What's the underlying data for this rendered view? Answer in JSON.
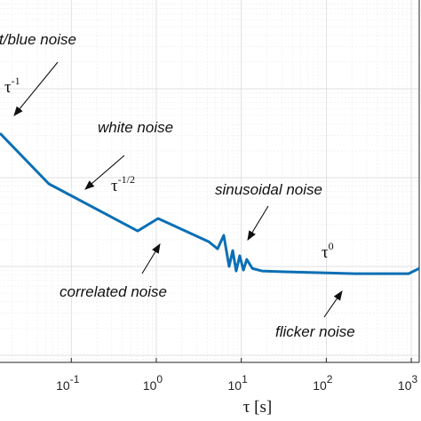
{
  "chart_data": {
    "type": "line",
    "x_label": "τ [s]",
    "x_scale": "log",
    "y_scale": "log",
    "grid": true,
    "xlim": [
      0.0145,
      1240
    ],
    "ylim": [
      8.32e-05,
      1
    ],
    "xticks": [
      {
        "value": 0.1,
        "label": "10",
        "exponent": "-1"
      },
      {
        "value": 1,
        "label": "10",
        "exponent": "0"
      },
      {
        "value": 10,
        "label": "10",
        "exponent": "1"
      },
      {
        "value": 100,
        "label": "10",
        "exponent": "2"
      },
      {
        "value": 1000,
        "label": "10",
        "exponent": "3"
      }
    ],
    "series": [
      {
        "color": "#0b6fb5",
        "x": [
          0.0145,
          0.0545,
          0.604,
          1.05,
          4.14,
          5.26,
          6.22,
          7.19,
          7.93,
          8.71,
          9.59,
          10.6,
          11.6,
          13.5,
          17.5,
          32,
          219,
          929,
          1240
        ],
        "values": [
          0.0316,
          0.00851,
          0.00251,
          0.00347,
          0.0019,
          0.00158,
          0.00224,
          0.001,
          0.00151,
          0.00089,
          0.00132,
          0.00091,
          0.0012,
          0.00095,
          0.00089,
          0.00087,
          0.00083,
          0.00083,
          0.00095
        ]
      }
    ],
    "annotations": [
      {
        "text": "t/blue noise"
      },
      {
        "text": "τ",
        "exponent": "-1"
      },
      {
        "text": "white noise"
      },
      {
        "text": "τ",
        "exponent": "-1/2"
      },
      {
        "text": "sinusoidal noise"
      },
      {
        "text": "correlated noise"
      },
      {
        "text": "τ",
        "exponent": "0"
      },
      {
        "text": "flicker noise"
      }
    ]
  }
}
